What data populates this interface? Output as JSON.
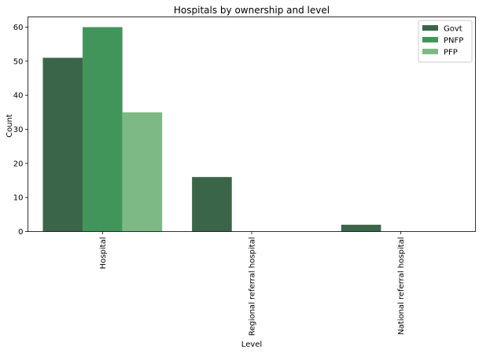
{
  "chart_data": {
    "type": "bar",
    "title": "Hospitals by ownership and level",
    "xlabel": "Level",
    "ylabel": "Count",
    "categories": [
      "Hospital",
      "Regional referral hospital",
      "National referral hospital"
    ],
    "series": [
      {
        "name": "Govt",
        "values": [
          51,
          16,
          2
        ],
        "color": "#3a6549"
      },
      {
        "name": "PNFP",
        "values": [
          60,
          0,
          0
        ],
        "color": "#42955a"
      },
      {
        "name": "PFP",
        "values": [
          35,
          0,
          0
        ],
        "color": "#7db985"
      }
    ],
    "ylim": [
      0,
      63
    ],
    "yticks": [
      0,
      10,
      20,
      30,
      40,
      50,
      60
    ],
    "grid": false,
    "legend_position": "top-right"
  }
}
